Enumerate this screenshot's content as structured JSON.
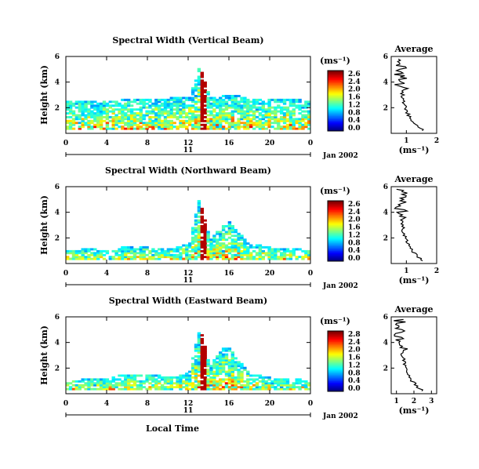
{
  "chart_data": [
    {
      "type": "heatmap",
      "title": "Spectral Width (Vertical Beam)",
      "ylabel": "Height (km)",
      "xticks": [
        "0",
        "4",
        "8",
        "12",
        "16",
        "20",
        "0"
      ],
      "yticks": [
        "6",
        "4",
        "2"
      ],
      "date_axis": {
        "day_label": "11",
        "month_label": "Jan 2002"
      },
      "xlim": [
        0,
        24
      ],
      "ylim": [
        0,
        6
      ],
      "colorbar": {
        "unit": "(ms⁻¹)",
        "ticks": [
          "2.6",
          "2.4",
          "2.0",
          "1.6",
          "1.2",
          "0.8",
          "0.4",
          "0.0"
        ],
        "range": [
          0,
          2.8
        ]
      },
      "series": [
        {
          "x": [
            0,
            2,
            4,
            6,
            8,
            10,
            12,
            13,
            14,
            16,
            18,
            20,
            22,
            24
          ],
          "y": [
            2.5,
            2.5,
            2.5,
            2.6,
            2.6,
            2.7,
            2.7,
            5.3,
            2.7,
            3.0,
            2.7,
            2.6,
            2.6,
            2.5
          ]
        }
      ],
      "average": {
        "title": "Average",
        "xlabel": "(ms⁻¹)",
        "xticks": [
          "1",
          "2"
        ],
        "yticks": [
          "6",
          "4",
          "2"
        ],
        "xlim": [
          0.5,
          2
        ],
        "ylim": [
          0,
          6
        ]
      }
    },
    {
      "type": "heatmap",
      "title": "Spectral Width (Northward Beam)",
      "ylabel": "Height (km)",
      "xticks": [
        "0",
        "4",
        "8",
        "12",
        "16",
        "20",
        "0"
      ],
      "yticks": [
        "6",
        "4",
        "2"
      ],
      "date_axis": {
        "day_label": "11",
        "month_label": "Jan 2002"
      },
      "xlim": [
        0,
        24
      ],
      "ylim": [
        0,
        6
      ],
      "colorbar": {
        "unit": "(ms⁻¹)",
        "ticks": [
          "2.6",
          "2.4",
          "2.0",
          "1.6",
          "1.2",
          "0.8",
          "0.4",
          "0.0"
        ],
        "range": [
          0,
          2.8
        ]
      },
      "series": [
        {
          "x": [
            0,
            2,
            4,
            6,
            8,
            10,
            12,
            13,
            14,
            15,
            16,
            17,
            18,
            20,
            22,
            24
          ],
          "y": [
            1.0,
            1.1,
            1.0,
            1.3,
            1.2,
            1.1,
            1.6,
            5.3,
            1.8,
            2.8,
            3.2,
            2.2,
            1.5,
            1.2,
            1.1,
            1.0
          ]
        }
      ],
      "average": {
        "title": "Average",
        "xlabel": "(ms⁻¹)",
        "xticks": [
          "1",
          "2"
        ],
        "yticks": [
          "6",
          "4",
          "2"
        ],
        "xlim": [
          0.5,
          2
        ],
        "ylim": [
          0,
          6
        ]
      }
    },
    {
      "type": "heatmap",
      "title": "Spectral Width (Eastward Beam)",
      "ylabel": "Height (km)",
      "xticks": [
        "0",
        "4",
        "8",
        "12",
        "16",
        "20",
        "0"
      ],
      "yticks": [
        "6",
        "4",
        "2"
      ],
      "date_axis": {
        "day_label": "11",
        "month_label": "Jan 2002"
      },
      "xlabel": "Local Time",
      "xlim": [
        0,
        24
      ],
      "ylim": [
        0,
        6
      ],
      "colorbar": {
        "unit": "(ms⁻¹)",
        "ticks": [
          "2.8",
          "2.4",
          "2.0",
          "1.6",
          "1.2",
          "0.8",
          "0.4",
          "0.0"
        ],
        "range": [
          0,
          2.8
        ]
      },
      "series": [
        {
          "x": [
            0,
            2,
            4,
            6,
            8,
            10,
            12,
            13,
            14,
            15,
            16,
            17,
            18,
            20,
            22,
            24
          ],
          "y": [
            1.0,
            1.1,
            1.2,
            1.5,
            1.4,
            1.3,
            1.7,
            5.3,
            2.0,
            3.4,
            3.6,
            2.4,
            1.5,
            1.2,
            1.1,
            1.0
          ]
        }
      ],
      "average": {
        "title": "Average",
        "xlabel": "(ms⁻¹)",
        "xticks": [
          "1",
          "2",
          "3"
        ],
        "yticks": [
          "6",
          "4",
          "2"
        ],
        "xlim": [
          0.7,
          3.3
        ],
        "ylim": [
          0,
          6
        ]
      }
    }
  ]
}
